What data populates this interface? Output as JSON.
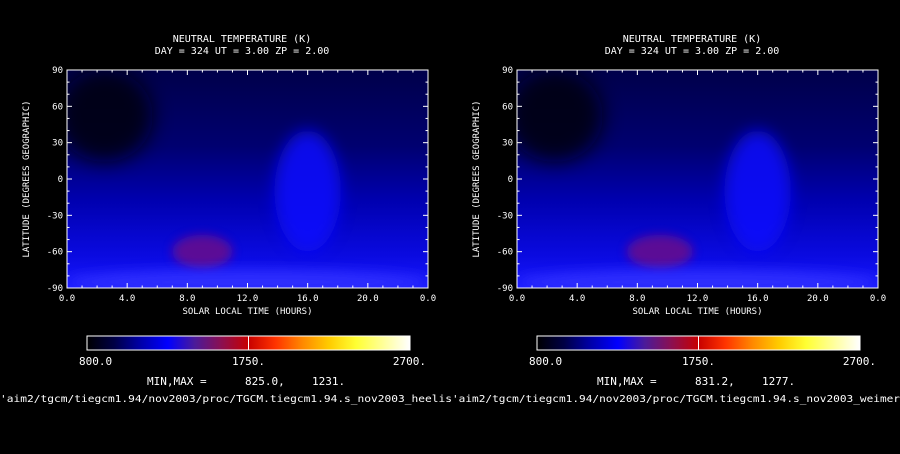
{
  "colorbar_colors": [
    "#000000",
    "#000044",
    "#0000aa",
    "#0000ff",
    "#4a1a9a",
    "#8c0f50",
    "#c80000",
    "#ff3300",
    "#ff8800",
    "#ffcc00",
    "#ffff33",
    "#ffff99",
    "#ffffff"
  ],
  "chart_data": [
    {
      "type": "heatmap",
      "title": "NEUTRAL TEMPERATURE (K)",
      "subtitle": "DAY = 324   UT =  3.00  ZP =   2.00",
      "xlabel": "SOLAR LOCAL TIME (HOURS)",
      "ylabel": "LATITUDE (DEGREES GEOGRAPHIC)",
      "xlim": [
        0,
        24
      ],
      "ylim": [
        -90,
        90
      ],
      "x_ticks": [
        "0.0",
        "4.0",
        "8.0",
        "12.0",
        "16.0",
        "20.0",
        "0.0"
      ],
      "y_ticks": [
        "90",
        "60",
        "30",
        "0",
        "-30",
        "-60",
        "-90"
      ],
      "colorbar": {
        "min_label": "800.0",
        "mid_label": "1750.",
        "max_label": "2700.",
        "range": [
          800,
          2700
        ]
      },
      "min_label": "MIN,MAX =",
      "min_value": "825.0,",
      "max_value": "1231.",
      "min": 825.0,
      "max": 1231.0,
      "file_path": "'aim2/tgcm/tiegcm1.94/nov2003/proc/TGCM.tiegcm1.94.s_nov2003_heelis",
      "features": [
        {
          "x": 2.5,
          "y": 52,
          "value": 825,
          "sx": 3.2,
          "sy": 38
        },
        {
          "x": 9.0,
          "y": -60,
          "value": 1231,
          "sx": 2.0,
          "sy": 14
        },
        {
          "x": 16.0,
          "y": -10,
          "value": 1120,
          "sx": 2.2,
          "sy": 50
        },
        {
          "x": 12.0,
          "y": -85,
          "value": 1160,
          "sx": 12,
          "sy": 10
        }
      ]
    },
    {
      "type": "heatmap",
      "title": "NEUTRAL TEMPERATURE (K)",
      "subtitle": "DAY = 324   UT =  3.00  ZP =   2.00",
      "xlabel": "SOLAR LOCAL TIME (HOURS)",
      "ylabel": "LATITUDE (DEGREES GEOGRAPHIC)",
      "xlim": [
        0,
        24
      ],
      "ylim": [
        -90,
        90
      ],
      "x_ticks": [
        "0.0",
        "4.0",
        "8.0",
        "12.0",
        "16.0",
        "20.0",
        "0.0"
      ],
      "y_ticks": [
        "90",
        "60",
        "30",
        "0",
        "-30",
        "-60",
        "-90"
      ],
      "colorbar": {
        "min_label": "800.0",
        "mid_label": "1750.",
        "max_label": "2700.",
        "range": [
          800,
          2700
        ]
      },
      "min_label": "MIN,MAX =",
      "min_value": "831.2,",
      "max_value": "1277.",
      "min": 831.2,
      "max": 1277.0,
      "file_path": "'aim2/tgcm/tiegcm1.94/nov2003/proc/TGCM.tiegcm1.94.s_nov2003_weimer",
      "features": [
        {
          "x": 2.5,
          "y": 52,
          "value": 831,
          "sx": 3.2,
          "sy": 38
        },
        {
          "x": 9.5,
          "y": -60,
          "value": 1277,
          "sx": 2.2,
          "sy": 14
        },
        {
          "x": 16.0,
          "y": -10,
          "value": 1130,
          "sx": 2.2,
          "sy": 50
        },
        {
          "x": 12.0,
          "y": -85,
          "value": 1170,
          "sx": 12,
          "sy": 10
        }
      ]
    }
  ]
}
